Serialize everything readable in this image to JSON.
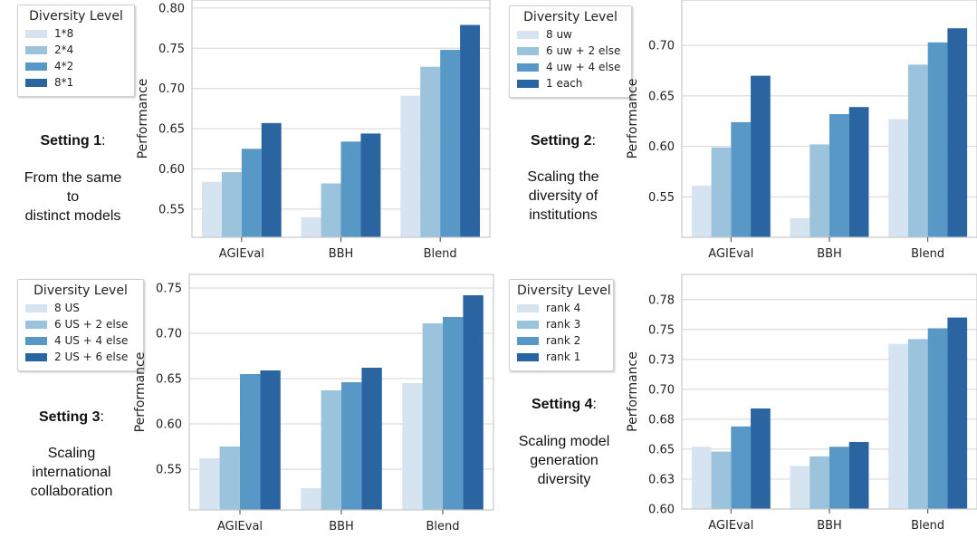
{
  "palette": [
    "#d6e4f1",
    "#9cc3dc",
    "#5898c6",
    "#2a65a2"
  ],
  "ylabel": "Performance",
  "panels": [
    {
      "legend_title": "Diversity Level",
      "legend_items": [
        "1*8",
        "2*4",
        "4*2",
        "8*1"
      ],
      "setting_name": "Setting 1",
      "setting_colon": ":",
      "caption": [
        "From the same to",
        "distinct models"
      ]
    },
    {
      "legend_title": "Diversity Level",
      "legend_items": [
        "8 uw",
        "6 uw + 2 else",
        "4 uw + 4 else",
        "1 each"
      ],
      "setting_name": "Setting 2",
      "setting_colon": ":",
      "caption": [
        "Scaling the",
        "diversity of",
        "institutions"
      ]
    },
    {
      "legend_title": "Diversity Level",
      "legend_items": [
        "8 US",
        "6 US + 2 else",
        "4 US + 4 else",
        "2 US + 6 else"
      ],
      "setting_name": "Setting 3",
      "setting_colon": ":",
      "caption": [
        "Scaling",
        "international",
        "collaboration"
      ]
    },
    {
      "legend_title": "Diversity Level",
      "legend_items": [
        "rank 4",
        "rank 3",
        "rank 2",
        "rank 1"
      ],
      "setting_name": "Setting 4",
      "setting_colon": ":",
      "caption": [
        "Scaling model",
        "generation",
        "diversity"
      ]
    }
  ],
  "chart_data": [
    {
      "type": "bar",
      "categories": [
        "AGIEval",
        "BBH",
        "Blend"
      ],
      "ylabel": "Performance",
      "ylim": [
        0.515,
        0.81
      ],
      "yticks": [
        0.55,
        0.6,
        0.65,
        0.7,
        0.75,
        0.8
      ],
      "ytick_labels": [
        "0.55",
        "0.60",
        "0.65",
        "0.70",
        "0.75",
        "0.80"
      ],
      "series": [
        {
          "name": "1*8",
          "values": [
            0.584,
            0.54,
            0.691
          ]
        },
        {
          "name": "2*4",
          "values": [
            0.596,
            0.582,
            0.727
          ]
        },
        {
          "name": "4*2",
          "values": [
            0.625,
            0.634,
            0.748
          ]
        },
        {
          "name": "8*1",
          "values": [
            0.657,
            0.644,
            0.779
          ]
        }
      ],
      "grid": true,
      "legend": "left"
    },
    {
      "type": "bar",
      "categories": [
        "AGIEval",
        "BBH",
        "Blend"
      ],
      "ylabel": "Performance",
      "ylim": [
        0.51,
        0.745
      ],
      "yticks": [
        0.55,
        0.6,
        0.65,
        0.7,
        0.75
      ],
      "ytick_labels": [
        "0.55",
        "0.60",
        "0.65",
        "0.70",
        "0.75"
      ],
      "series": [
        {
          "name": "8 uw",
          "values": [
            0.561,
            0.529,
            0.627
          ]
        },
        {
          "name": "6 uw + 2 else",
          "values": [
            0.599,
            0.602,
            0.681
          ]
        },
        {
          "name": "4 uw + 4 else",
          "values": [
            0.624,
            0.632,
            0.703
          ]
        },
        {
          "name": "1 each",
          "values": [
            0.67,
            0.639,
            0.717
          ]
        }
      ],
      "grid": true,
      "legend": "left"
    },
    {
      "type": "bar",
      "categories": [
        "AGIEval",
        "BBH",
        "Blend"
      ],
      "ylabel": "Performance",
      "ylim": [
        0.505,
        0.765
      ],
      "yticks": [
        0.55,
        0.6,
        0.65,
        0.7,
        0.75
      ],
      "ytick_labels": [
        "0.55",
        "0.60",
        "0.65",
        "0.70",
        "0.75"
      ],
      "series": [
        {
          "name": "8 US",
          "values": [
            0.562,
            0.529,
            0.645
          ]
        },
        {
          "name": "6 US + 2 else",
          "values": [
            0.575,
            0.637,
            0.711
          ]
        },
        {
          "name": "4 US + 4 else",
          "values": [
            0.655,
            0.646,
            0.718
          ]
        },
        {
          "name": "2 US + 6 else",
          "values": [
            0.659,
            0.662,
            0.742
          ]
        }
      ],
      "grid": true,
      "legend": "left"
    },
    {
      "type": "bar",
      "categories": [
        "AGIEval",
        "BBH",
        "Blend"
      ],
      "ylabel": "Performance",
      "ylim": [
        0.6,
        0.796
      ],
      "yticks": [
        0.6,
        0.625,
        0.65,
        0.675,
        0.7,
        0.725,
        0.75,
        0.775
      ],
      "ytick_labels": [
        "0.60",
        "0.63",
        "0.65",
        "0.68",
        "0.70",
        "0.73",
        "0.75",
        "0.78"
      ],
      "series": [
        {
          "name": "rank 4",
          "values": [
            0.652,
            0.636,
            0.738
          ]
        },
        {
          "name": "rank 3",
          "values": [
            0.648,
            0.644,
            0.742
          ]
        },
        {
          "name": "rank 2",
          "values": [
            0.669,
            0.652,
            0.751
          ]
        },
        {
          "name": "rank 1",
          "values": [
            0.684,
            0.656,
            0.76
          ]
        }
      ],
      "grid": true,
      "legend": "left"
    }
  ]
}
